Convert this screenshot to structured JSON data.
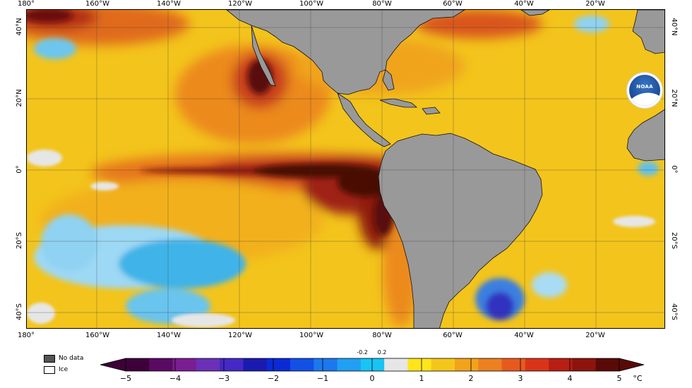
{
  "map": {
    "longitude_labels": [
      "180°",
      "160°W",
      "140°W",
      "120°W",
      "100°W",
      "80°W",
      "60°W",
      "40°W",
      "20°W"
    ],
    "latitude_labels_left": [
      "40°N",
      "20°N",
      "0°",
      "20°S",
      "40°S"
    ],
    "latitude_labels_right": [
      "40°N",
      "20°N",
      "0°",
      "20°S",
      "40°S"
    ],
    "logo_text": "NOAA",
    "colors": {
      "land": "#999999",
      "ocean_base": "#f3c41c",
      "warm_anomaly": "#4a0a06",
      "cool_anomaly": "#3fb3e8"
    }
  },
  "legend": {
    "no_data_label": "No data",
    "ice_label": "Ice",
    "no_data_color": "#555555",
    "ice_color": "#ffffff"
  },
  "color_scale": {
    "unit": "°C",
    "tick_labels": [
      "−5",
      "−4",
      "−3",
      "−2",
      "−1",
      "0",
      "1",
      "2",
      "3",
      "4",
      "5"
    ],
    "small_labels": [
      "-0.2",
      "0.2"
    ],
    "colors": [
      "#3d0039",
      "#5a0a63",
      "#7b1d93",
      "#6b2fb8",
      "#4528c5",
      "#1a1ab0",
      "#0a2ad6",
      "#1250e6",
      "#1b78ee",
      "#1fa0f2",
      "#18c4f4",
      "#e6e6e6",
      "#ffe51a",
      "#f5c61a",
      "#f2a31c",
      "#ec8020",
      "#e65a1e",
      "#d93419",
      "#b81e13",
      "#8c140d",
      "#5a0a06"
    ]
  }
}
